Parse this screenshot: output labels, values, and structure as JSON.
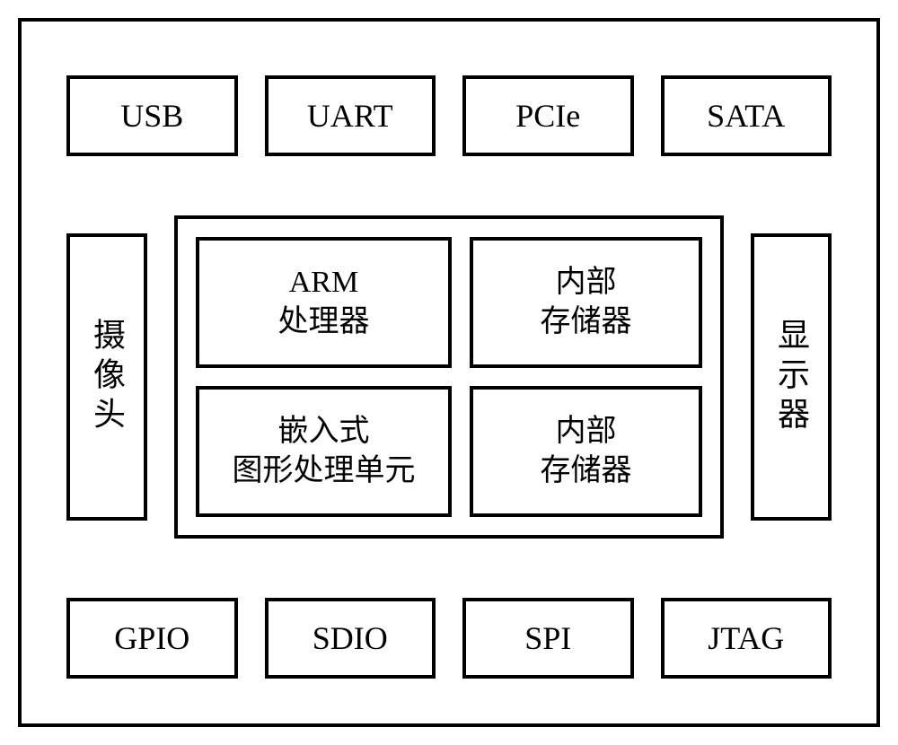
{
  "diagram": {
    "type": "block-diagram",
    "background_color": "#ffffff",
    "border_color": "#000000",
    "border_width": 4,
    "font_family": "Times New Roman",
    "font_size_box": 36,
    "font_size_core": 34,
    "top_row": [
      {
        "label": "USB"
      },
      {
        "label": "UART"
      },
      {
        "label": "PCIe"
      },
      {
        "label": "SATA"
      }
    ],
    "bottom_row": [
      {
        "label": "GPIO"
      },
      {
        "label": "SDIO"
      },
      {
        "label": "SPI"
      },
      {
        "label": "JTAG"
      }
    ],
    "left_box": {
      "label": "摄像头"
    },
    "right_box": {
      "label": "显示器"
    },
    "core": {
      "cells": [
        {
          "line1": "ARM",
          "line2": "处理器"
        },
        {
          "line1": "内部",
          "line2": "存储器"
        },
        {
          "line1": "嵌入式",
          "line2": "图形处理单元"
        },
        {
          "line1": "内部",
          "line2": "存储器"
        }
      ]
    }
  }
}
